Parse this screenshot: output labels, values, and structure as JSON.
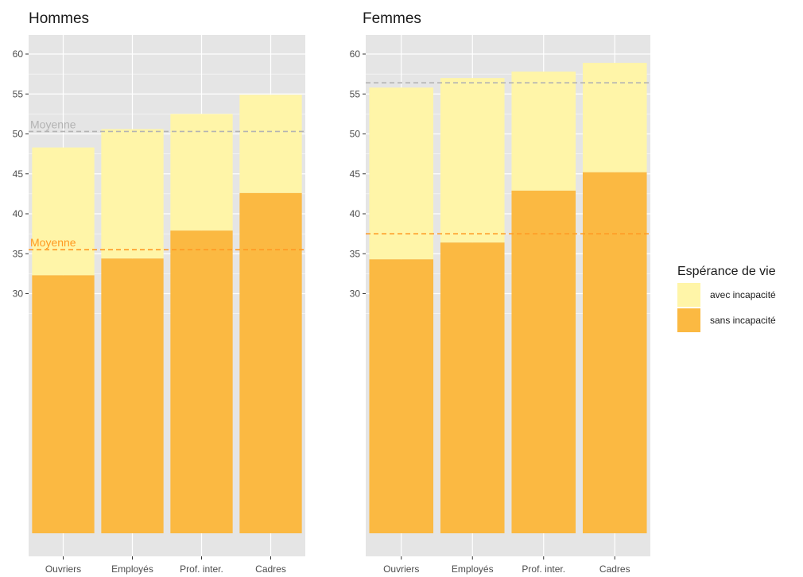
{
  "chart_data": {
    "type": "bar",
    "stacked": true,
    "legend": {
      "title": "Espérance de vie",
      "placement": "right",
      "entries": [
        {
          "label": "avec incapacité",
          "color": "#FFF5A8"
        },
        {
          "label": "sans incapacité",
          "color": "#FBB942"
        }
      ]
    },
    "colors": {
      "panel_bg": "#E5E5E5",
      "grid": "#FFFFFF",
      "avec": "#FFF5A8",
      "sans": "#FBB942",
      "ref_total": "#B3B3B3",
      "ref_sans": "#FF9922"
    },
    "y_ticks": [
      30,
      35,
      40,
      45,
      50,
      55,
      60
    ],
    "ylim": [
      0,
      61
    ],
    "grid": true,
    "panels": [
      {
        "title": "Hommes",
        "categories": [
          "Ouvriers",
          "Employés",
          "Prof. inter.",
          "Cadres"
        ],
        "series": [
          {
            "name": "sans incapacité",
            "values": [
              32.3,
              34.4,
              37.9,
              42.6
            ]
          },
          {
            "name": "avec incapacité",
            "values": [
              16.0,
              16.2,
              14.6,
              12.3
            ]
          }
        ],
        "reference_lines": [
          {
            "y": 50.3,
            "label": "Moyenne",
            "kind": "total"
          },
          {
            "y": 35.5,
            "label": "Moyenne",
            "kind": "sans"
          }
        ]
      },
      {
        "title": "Femmes",
        "categories": [
          "Ouvriers",
          "Employés",
          "Prof. inter.",
          "Cadres"
        ],
        "series": [
          {
            "name": "sans incapacité",
            "values": [
              34.3,
              36.4,
              42.9,
              45.2
            ]
          },
          {
            "name": "avec incapacité",
            "values": [
              21.5,
              20.6,
              14.9,
              13.7
            ]
          }
        ],
        "reference_lines": [
          {
            "y": 56.4,
            "label": "",
            "kind": "total"
          },
          {
            "y": 37.5,
            "label": "",
            "kind": "sans"
          }
        ]
      }
    ]
  }
}
